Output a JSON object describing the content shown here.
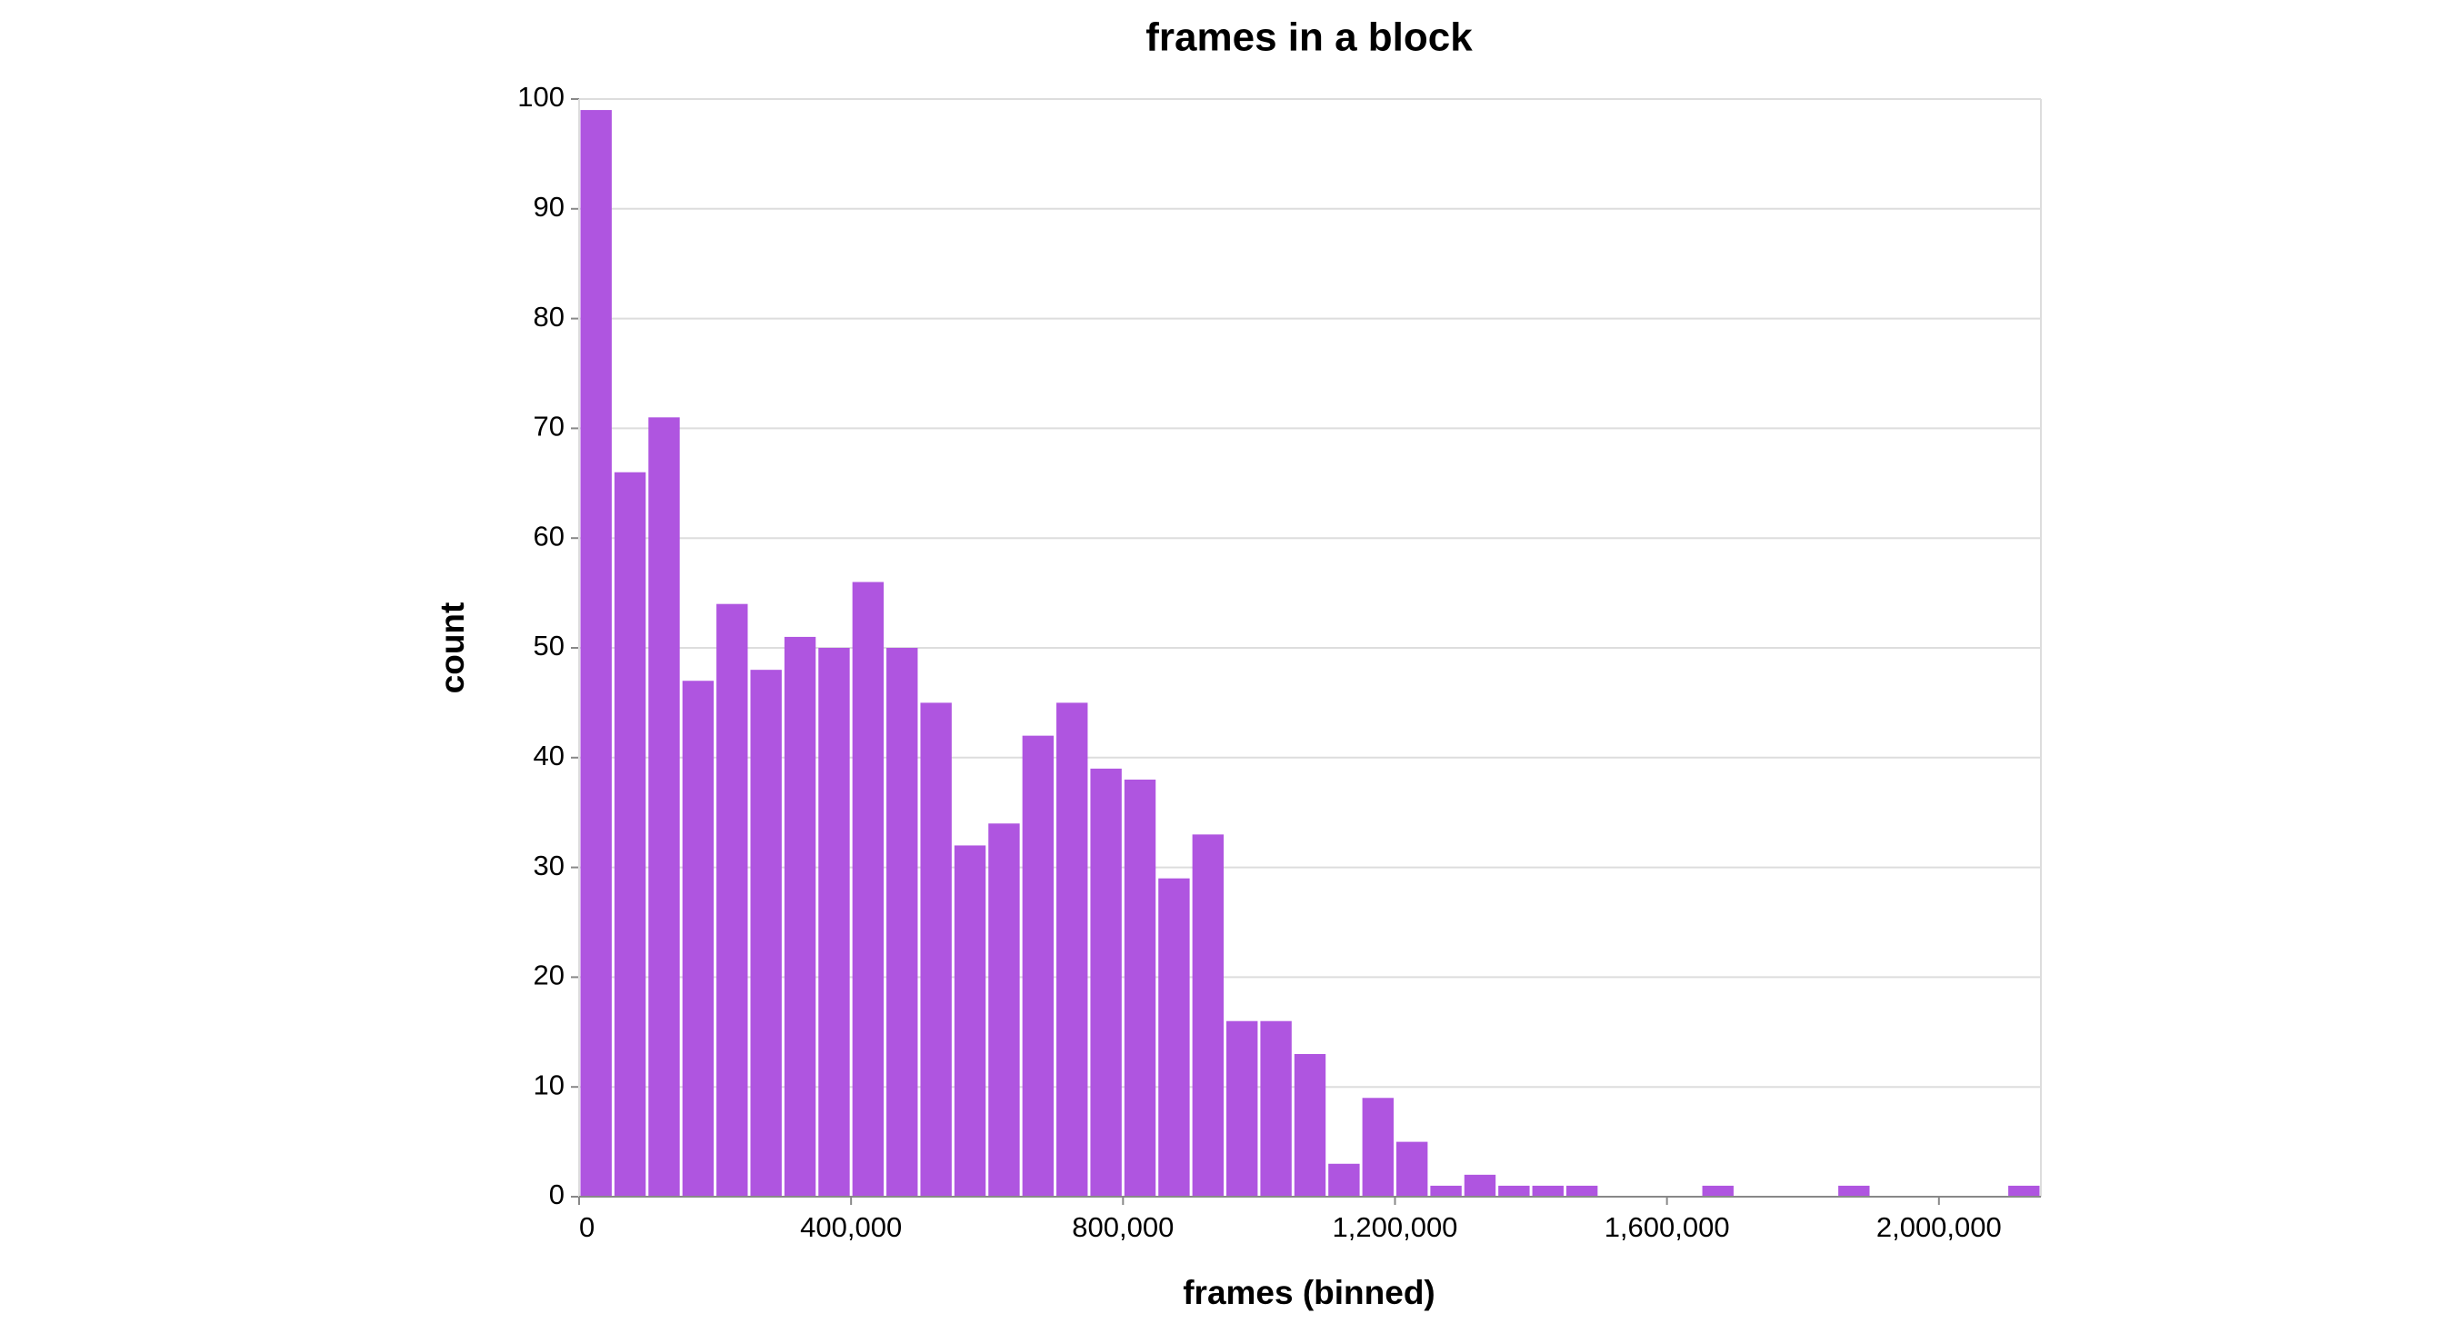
{
  "chart_data": {
    "type": "histogram",
    "title": "frames in a block",
    "x_label": "frames (binned)",
    "y_label": "count",
    "bins": [
      0,
      50000,
      100000,
      150000,
      200000,
      250000,
      300000,
      350000,
      400000,
      450000,
      500000,
      550000,
      600000,
      650000,
      700000,
      750000,
      800000,
      850000,
      900000,
      950000,
      1000000,
      1050000,
      1100000,
      1150000,
      1200000,
      1250000,
      1300000,
      1350000,
      1400000,
      1450000,
      1500000,
      1550000,
      1600000,
      1650000,
      1700000,
      1750000,
      1800000,
      1850000,
      1900000,
      1950000,
      2000000,
      2050000,
      2100000,
      2150000
    ],
    "values": [
      99,
      66,
      71,
      47,
      54,
      48,
      51,
      50,
      56,
      50,
      45,
      32,
      34,
      42,
      45,
      39,
      38,
      29,
      33,
      16,
      16,
      13,
      3,
      9,
      5,
      1,
      2,
      1,
      1,
      1,
      0,
      0,
      0,
      1,
      0,
      0,
      0,
      1,
      0,
      0,
      0,
      0,
      1
    ],
    "color": "#af55e0",
    "xlim": [
      0,
      2150000
    ],
    "xticks": [
      0,
      {
        "value": 400000,
        "label": "400,000"
      },
      {
        "value": 800000,
        "label": "800,000"
      },
      {
        "value": 1200000,
        "label": "1,200,000"
      },
      {
        "value": 1600000,
        "label": "1,600,000"
      },
      {
        "value": 2000000,
        "label": "2,000,000"
      }
    ],
    "ylim": [
      0,
      100
    ],
    "yticks": [
      0,
      10,
      20,
      30,
      40,
      50,
      60,
      70,
      80,
      90,
      100
    ],
    "grid": true
  }
}
